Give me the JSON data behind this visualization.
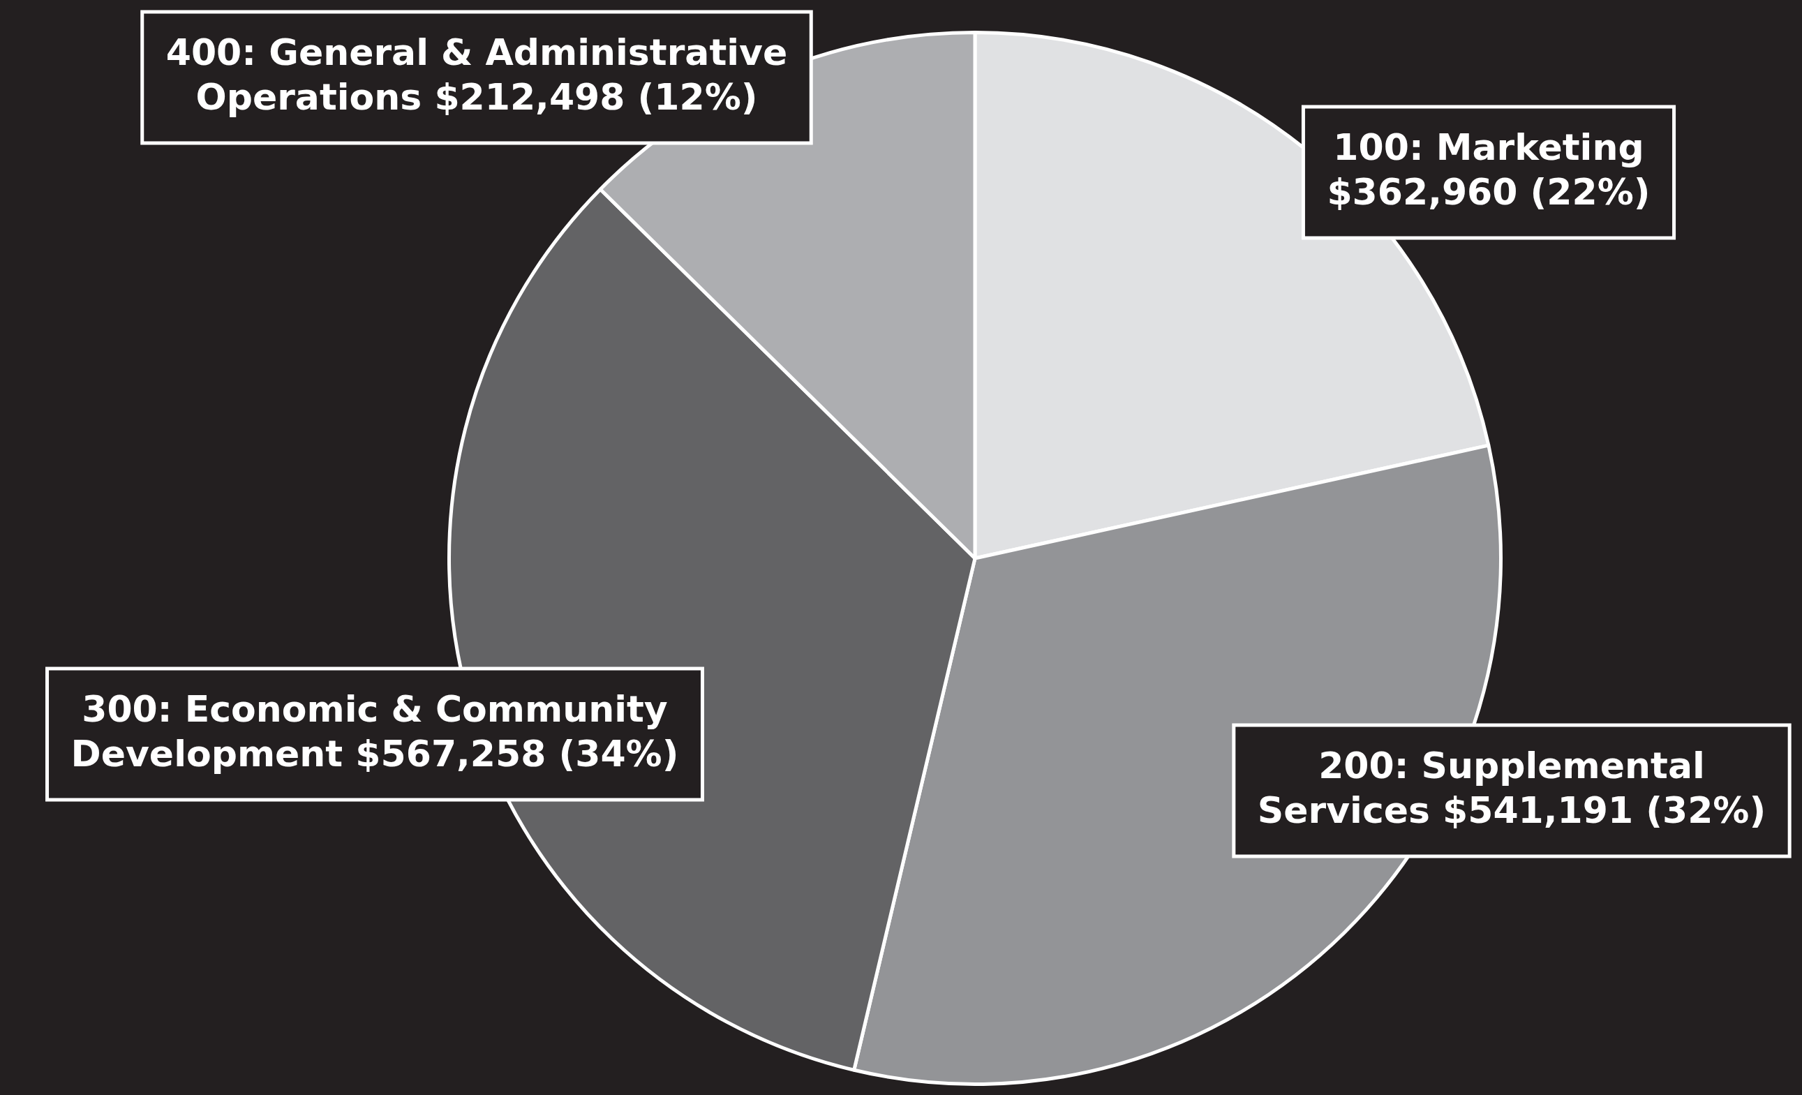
{
  "chart_data": {
    "type": "pie",
    "categories": [
      "100: Marketing",
      "200: Supplemental Services",
      "300: Economic & Community Development",
      "400: General & Administrative Operations"
    ],
    "values": [
      362960,
      541191,
      567258,
      212498
    ],
    "colors": [
      "#e0e1e3",
      "#939497",
      "#636365",
      "#adaeb1"
    ],
    "value_labels": [
      "$362,960 (22%)",
      "$541,191 (32%)",
      "$567,258 (34%)",
      "$212,498 (12%)"
    ]
  }
}
